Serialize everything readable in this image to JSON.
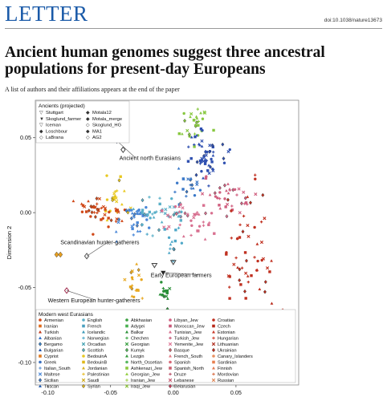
{
  "header": {
    "section": "LETTER",
    "doi": "doi:10.1038/nature13673"
  },
  "article": {
    "title_line1": "Ancient human genomes suggest three ancestral",
    "title_line2": "populations for present-day Europeans",
    "authors_note": "A list of authors and their affiliations appears at the end of the paper"
  },
  "chart_data": {
    "type": "scatter",
    "ylabel": "Dimension 2",
    "xlabel": "",
    "xlim": [
      -0.11,
      0.1
    ],
    "ylim": [
      -0.115,
      0.075
    ],
    "x_ticks": [
      "-0.10",
      "-0.05",
      "0.00",
      "0.05"
    ],
    "x_tick_values": [
      -0.1,
      -0.05,
      0.0,
      0.05
    ],
    "y_ticks": [
      "0.05",
      "0.00",
      "-0.05",
      "-0.10"
    ],
    "y_tick_values": [
      0.05,
      0.0,
      -0.05,
      -0.1
    ],
    "ancients_legend_title": "Ancients (projected)",
    "ancients_legend": [
      {
        "name": "Stuttgart",
        "symbol": "▽"
      },
      {
        "name": "Skoglund_farmer",
        "symbol": "▼"
      },
      {
        "name": "Iceman",
        "symbol": "▽"
      },
      {
        "name": "Loschbour",
        "symbol": "◆"
      },
      {
        "name": "LaBrana",
        "symbol": "◇"
      },
      {
        "name": "Motala12",
        "symbol": "◆"
      },
      {
        "name": "Motala_merge",
        "symbol": "◆"
      },
      {
        "name": "Skoglund_HG",
        "symbol": "◇"
      },
      {
        "name": "MA1",
        "symbol": "◆"
      },
      {
        "name": "AG2",
        "symbol": "◇"
      }
    ],
    "ancient_points": [
      {
        "name": "MA1",
        "x": -0.045,
        "y": 0.048,
        "color": "#2a3f9a",
        "shape": "diamond"
      },
      {
        "name": "AG2",
        "x": -0.04,
        "y": 0.042,
        "color": "#444444",
        "shape": "diamond-open"
      },
      {
        "name": "Motala12",
        "x": -0.093,
        "y": -0.028,
        "color": "#e8a020",
        "shape": "diamond"
      },
      {
        "name": "Motala_merge",
        "x": -0.09,
        "y": -0.028,
        "color": "#e8a020",
        "shape": "diamond"
      },
      {
        "name": "Skoglund_HG",
        "x": -0.069,
        "y": -0.029,
        "color": "#555555",
        "shape": "diamond-open"
      },
      {
        "name": "LaBrana",
        "x": -0.085,
        "y": -0.052,
        "color": "#a03050",
        "shape": "diamond-open"
      },
      {
        "name": "Loschbour",
        "x": -0.1,
        "y": -0.068,
        "color": "#2a6030",
        "shape": "diamond"
      },
      {
        "name": "Stuttgart",
        "x": -0.015,
        "y": -0.035,
        "color": "#444444",
        "shape": "tri-down-open"
      },
      {
        "name": "Skoglund_farmer",
        "x": -0.008,
        "y": -0.04,
        "color": "#222222",
        "shape": "tri-down"
      },
      {
        "name": "Iceman",
        "x": 0.0,
        "y": -0.033,
        "color": "#444444",
        "shape": "tri-down-open"
      }
    ],
    "annotations": [
      {
        "text": "Ancient north Eurasians",
        "x": -0.043,
        "y": 0.035,
        "anchor_x": -0.045,
        "anchor_y": 0.048
      },
      {
        "text": "Scandinavian hunter-gatherers",
        "x": -0.09,
        "y": -0.021,
        "anchor_x": -0.069,
        "anchor_y": -0.029
      },
      {
        "text": "Early European farmers",
        "x": -0.018,
        "y": -0.043,
        "anchor_x": -0.008,
        "anchor_y": -0.04
      },
      {
        "text": "Western European hunter-gatherers",
        "x": -0.1,
        "y": -0.06,
        "anchor_x": -0.085,
        "anchor_y": -0.052
      }
    ],
    "modern_legend_title": "Modern west Eurasians",
    "modern_legend": [
      {
        "name": "Armenian",
        "color": "#d04818",
        "shape": "circle"
      },
      {
        "name": "Iranian",
        "color": "#e06a1a",
        "shape": "square"
      },
      {
        "name": "Turkish",
        "color": "#c03818",
        "shape": "triangle"
      },
      {
        "name": "Albanian",
        "color": "#3070c8",
        "shape": "triangle"
      },
      {
        "name": "Bergamo",
        "color": "#3a82c8",
        "shape": "diamond"
      },
      {
        "name": "Bulgarian",
        "color": "#2050a8",
        "shape": "triangle"
      },
      {
        "name": "Cypriot",
        "color": "#e07a20",
        "shape": "square"
      },
      {
        "name": "Greek",
        "color": "#3a70c0",
        "shape": "circle"
      },
      {
        "name": "Italian_South",
        "color": "#5a90d0",
        "shape": "plus"
      },
      {
        "name": "Maltese",
        "color": "#4a88d8",
        "shape": "cross"
      },
      {
        "name": "Sicilian",
        "color": "#3a78c8",
        "shape": "diamond"
      },
      {
        "name": "Tuscan",
        "color": "#2a60b0",
        "shape": "triangle"
      },
      {
        "name": "English",
        "color": "#5ab0c8",
        "shape": "circle"
      },
      {
        "name": "French",
        "color": "#4aa0c0",
        "shape": "square"
      },
      {
        "name": "Icelandic",
        "color": "#3a98b8",
        "shape": "triangle"
      },
      {
        "name": "Norwegian",
        "color": "#50a8c8",
        "shape": "plus"
      },
      {
        "name": "Orcadian",
        "color": "#40a0b0",
        "shape": "cross"
      },
      {
        "name": "Scottish",
        "color": "#5ab8c0",
        "shape": "diamond"
      },
      {
        "name": "BedouinA",
        "color": "#e8c820",
        "shape": "circle"
      },
      {
        "name": "BedouinB",
        "color": "#e0b818",
        "shape": "square"
      },
      {
        "name": "Jordanian",
        "color": "#d8b020",
        "shape": "triangle"
      },
      {
        "name": "Palestinian",
        "color": "#e8c030",
        "shape": "plus"
      },
      {
        "name": "Saudi",
        "color": "#d0a818",
        "shape": "cross"
      },
      {
        "name": "Syrian",
        "color": "#e0b820",
        "shape": "diamond"
      },
      {
        "name": "Abkhasian",
        "color": "#3aa040",
        "shape": "circle"
      },
      {
        "name": "Adygei",
        "color": "#48b050",
        "shape": "square"
      },
      {
        "name": "Balkar",
        "color": "#2a9038",
        "shape": "triangle"
      },
      {
        "name": "Chechen",
        "color": "#40a848",
        "shape": "plus"
      },
      {
        "name": "Georgian",
        "color": "#38a040",
        "shape": "cross"
      },
      {
        "name": "Kumyk",
        "color": "#50b858",
        "shape": "diamond"
      },
      {
        "name": "Lezgin",
        "color": "#309838",
        "shape": "triangle"
      },
      {
        "name": "North_Ossetian",
        "color": "#58b860",
        "shape": "circle"
      },
      {
        "name": "Ashkenazi_Jew",
        "color": "#8cc840",
        "shape": "square"
      },
      {
        "name": "Georgian_Jew",
        "color": "#98d048",
        "shape": "triangle"
      },
      {
        "name": "Iranian_Jew",
        "color": "#a0d050",
        "shape": "plus"
      },
      {
        "name": "Iraqi_Jew",
        "color": "#88c038",
        "shape": "cross"
      },
      {
        "name": "Libyan_Jew",
        "color": "#d06080",
        "shape": "circle"
      },
      {
        "name": "Moroccan_Jew",
        "color": "#c85878",
        "shape": "square"
      },
      {
        "name": "Tunisian_Jew",
        "color": "#d87090",
        "shape": "triangle"
      },
      {
        "name": "Turkish_Jew",
        "color": "#c05070",
        "shape": "plus"
      },
      {
        "name": "Yemenite_Jew",
        "color": "#e07898",
        "shape": "cross"
      },
      {
        "name": "Basque",
        "color": "#d06870",
        "shape": "diamond"
      },
      {
        "name": "French_South",
        "color": "#e07880",
        "shape": "triangle"
      },
      {
        "name": "Spanish",
        "color": "#d86878",
        "shape": "circle"
      },
      {
        "name": "Spanish_North",
        "color": "#c86070",
        "shape": "square"
      },
      {
        "name": "Druze",
        "color": "#b85068",
        "shape": "plus"
      },
      {
        "name": "Lebanese",
        "color": "#c85870",
        "shape": "cross"
      },
      {
        "name": "Belarusian",
        "color": "#d04060",
        "shape": "diamond"
      },
      {
        "name": "Croatian",
        "color": "#c03020",
        "shape": "circle"
      },
      {
        "name": "Czech",
        "color": "#b82818",
        "shape": "square"
      },
      {
        "name": "Estonian",
        "color": "#c83828",
        "shape": "triangle"
      },
      {
        "name": "Hungarian",
        "color": "#d04030",
        "shape": "plus"
      },
      {
        "name": "Lithuanian",
        "color": "#b03020",
        "shape": "cross"
      },
      {
        "name": "Ukrainian",
        "color": "#c83020",
        "shape": "diamond"
      },
      {
        "name": "Canary_Islanders",
        "color": "#e89060",
        "shape": "circle"
      },
      {
        "name": "Sardinian",
        "color": "#e88050",
        "shape": "square"
      },
      {
        "name": "Finnish",
        "color": "#e07850",
        "shape": "triangle"
      },
      {
        "name": "Mordovian",
        "color": "#d87048",
        "shape": "plus"
      },
      {
        "name": "Russian",
        "color": "#e08858",
        "shape": "cross"
      }
    ],
    "modern_clusters": [
      {
        "color": "#88c840",
        "cx": 0.018,
        "cy": 0.06,
        "sx": 0.005,
        "sy": 0.008,
        "n": 28
      },
      {
        "color": "#2f50b0",
        "cx": 0.025,
        "cy": 0.038,
        "sx": 0.008,
        "sy": 0.008,
        "n": 55
      },
      {
        "color": "#3a78c8",
        "cx": 0.012,
        "cy": 0.022,
        "sx": 0.006,
        "sy": 0.006,
        "n": 20
      },
      {
        "color": "#e8c820",
        "cx": -0.045,
        "cy": 0.01,
        "sx": 0.004,
        "sy": 0.008,
        "n": 22
      },
      {
        "color": "#d04818",
        "cx": -0.058,
        "cy": 0.001,
        "sx": 0.01,
        "sy": 0.005,
        "n": 45
      },
      {
        "color": "#4a88d8",
        "cx": -0.03,
        "cy": -0.005,
        "sx": 0.008,
        "sy": 0.005,
        "n": 35
      },
      {
        "color": "#5ab0c8",
        "cx": -0.008,
        "cy": 0.0,
        "sx": 0.01,
        "sy": 0.005,
        "n": 35
      },
      {
        "color": "#d87090",
        "cx": 0.01,
        "cy": -0.005,
        "sx": 0.012,
        "sy": 0.006,
        "n": 40
      },
      {
        "color": "#d06080",
        "cx": 0.04,
        "cy": 0.01,
        "sx": 0.012,
        "sy": 0.006,
        "n": 35
      },
      {
        "color": "#c03020",
        "cx": 0.06,
        "cy": -0.03,
        "sx": 0.01,
        "sy": 0.022,
        "n": 55
      },
      {
        "color": "#b82818",
        "cx": 0.08,
        "cy": -0.08,
        "sx": 0.007,
        "sy": 0.012,
        "n": 28
      },
      {
        "color": "#e8a820",
        "cx": -0.032,
        "cy": -0.045,
        "sx": 0.003,
        "sy": 0.007,
        "n": 18
      },
      {
        "color": "#2a9038",
        "cx": -0.006,
        "cy": -0.052,
        "sx": 0.003,
        "sy": 0.004,
        "n": 14
      },
      {
        "color": "#50a8c8",
        "cx": 0.0,
        "cy": -0.02,
        "sx": 0.006,
        "sy": 0.008,
        "n": 15
      }
    ]
  }
}
